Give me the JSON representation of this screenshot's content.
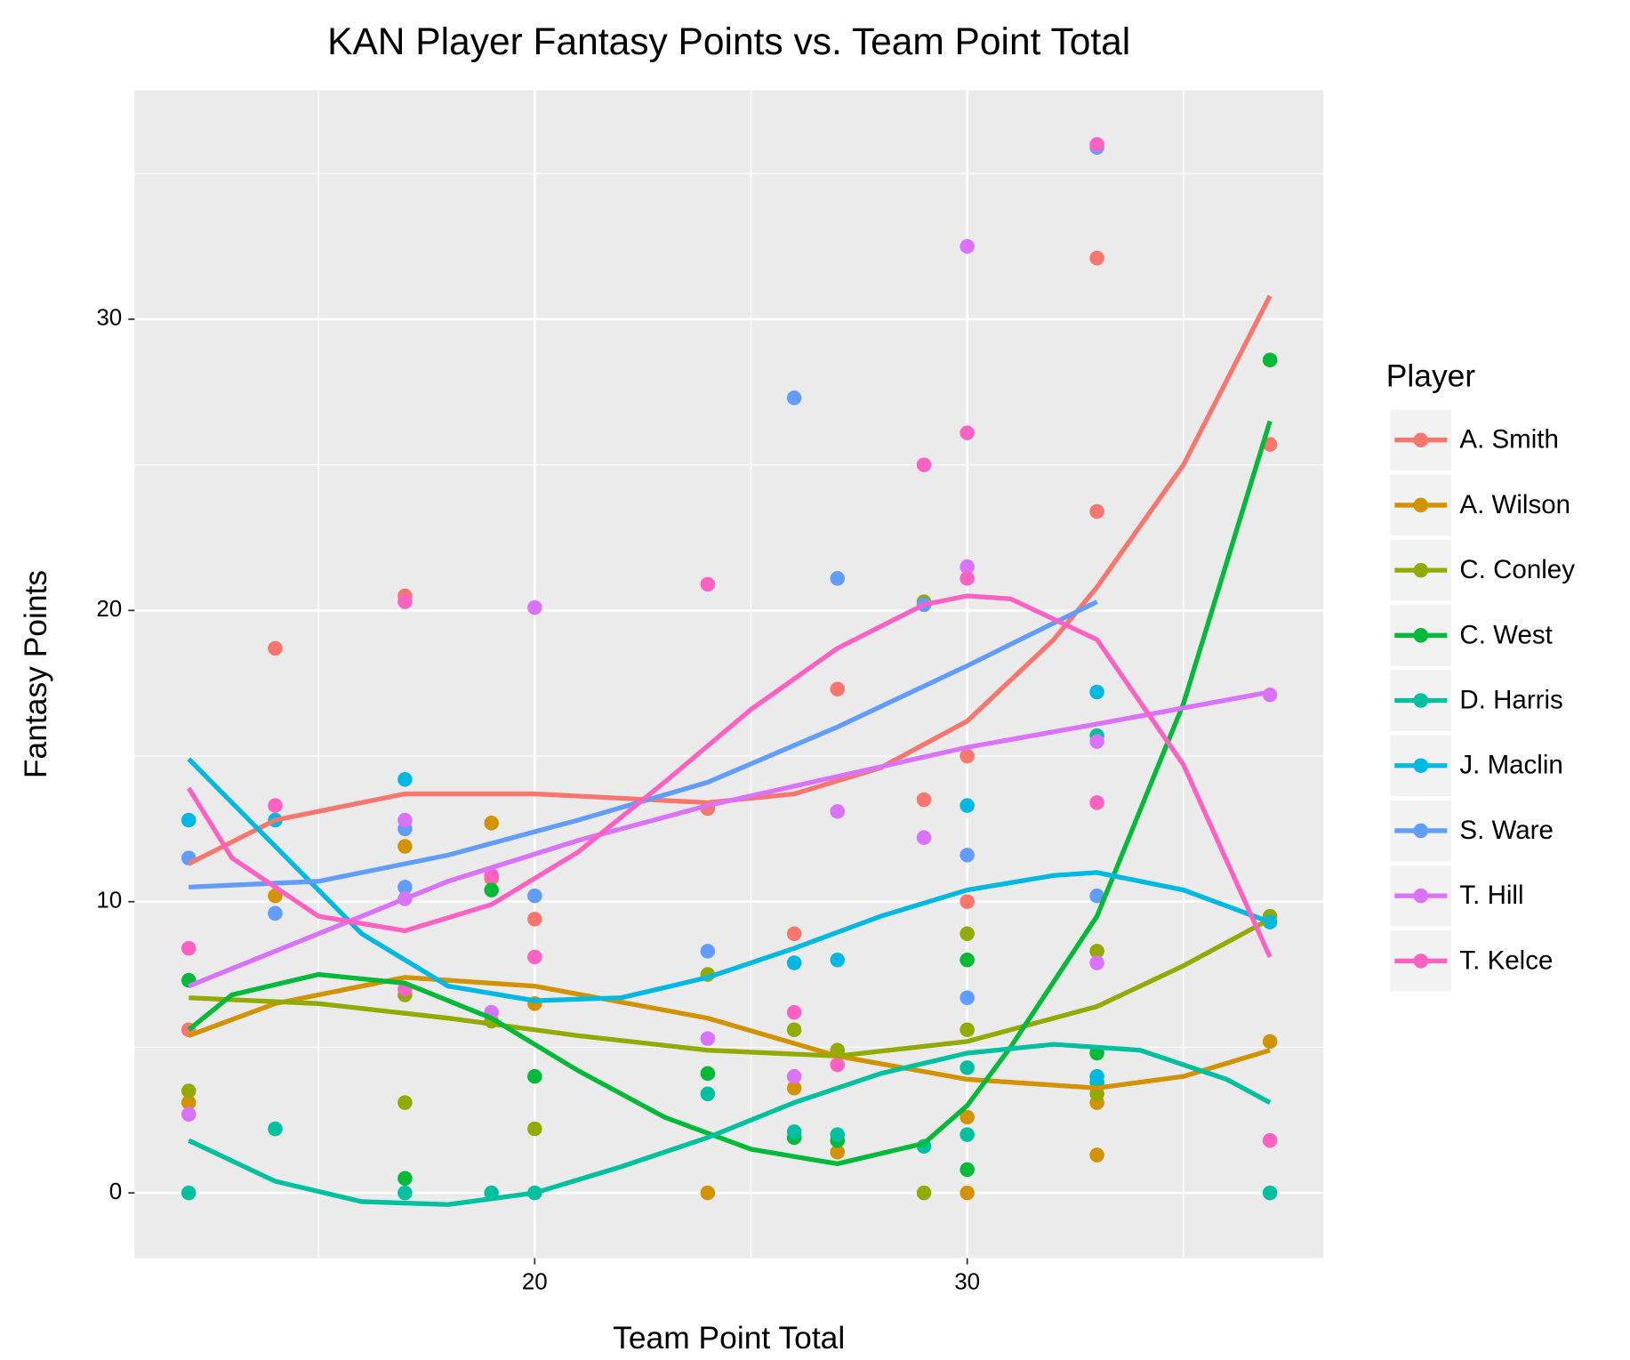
{
  "chart_data": {
    "type": "scatter",
    "title": "KAN Player Fantasy Points vs. Team Point Total",
    "x_label": "Team Point Total",
    "y_label": "Fantasy Points",
    "legend_title": "Player",
    "xlim": [
      10.75,
      38.23
    ],
    "ylim": [
      -2.24,
      37.86
    ],
    "xticks": [
      20,
      30
    ],
    "yticks": [
      0,
      10,
      20,
      30
    ],
    "grid": true,
    "legend_position": "right",
    "series": [
      {
        "name": "A. Smith",
        "color": "#F8766D",
        "x": [
          12,
          14,
          17,
          19,
          20,
          24,
          26,
          27,
          29,
          30,
          30,
          33,
          33,
          37
        ],
        "y": [
          5.6,
          18.7,
          20.5,
          10.8,
          9.4,
          13.2,
          8.9,
          17.3,
          13.5,
          15.0,
          10.0,
          32.1,
          23.4,
          25.7
        ],
        "smooth_x": [
          12,
          14,
          17,
          20,
          24,
          26,
          28,
          30,
          32,
          33,
          35,
          37
        ],
        "smooth_y": [
          11.3,
          12.8,
          13.7,
          13.7,
          13.4,
          13.7,
          14.6,
          16.2,
          19.0,
          20.8,
          25.0,
          30.8
        ]
      },
      {
        "name": "A. Wilson",
        "color": "#D39200",
        "x": [
          12,
          14,
          17,
          19,
          20,
          24,
          26,
          27,
          30,
          30,
          33,
          33,
          37
        ],
        "y": [
          3.1,
          10.2,
          11.9,
          12.7,
          6.5,
          0,
          3.6,
          1.4,
          2.6,
          0,
          3.1,
          1.3,
          5.2
        ],
        "smooth_x": [
          12,
          14,
          17,
          20,
          24,
          27,
          30,
          33,
          35,
          37
        ],
        "smooth_y": [
          5.4,
          6.5,
          7.4,
          7.1,
          6.0,
          4.7,
          3.9,
          3.6,
          4.0,
          4.9
        ]
      },
      {
        "name": "C. Conley",
        "color": "#93AA00",
        "x": [
          12,
          17,
          17,
          19,
          20,
          24,
          26,
          27,
          29,
          29,
          30,
          30,
          33,
          33,
          37
        ],
        "y": [
          3.5,
          3.1,
          6.8,
          5.9,
          2.2,
          7.5,
          5.6,
          4.9,
          0,
          20.3,
          8.9,
          5.6,
          8.3,
          3.4,
          9.5
        ],
        "smooth_x": [
          12,
          15,
          18,
          21,
          24,
          27,
          30,
          33,
          35,
          37
        ],
        "smooth_y": [
          6.7,
          6.5,
          6.0,
          5.4,
          4.9,
          4.7,
          5.2,
          6.4,
          7.8,
          9.4
        ]
      },
      {
        "name": "C. West",
        "color": "#00BA38",
        "x": [
          12,
          17,
          19,
          20,
          24,
          26,
          27,
          30,
          30,
          33,
          37
        ],
        "y": [
          7.3,
          0.5,
          10.4,
          4.0,
          4.1,
          1.9,
          1.8,
          8.0,
          0.8,
          4.8,
          28.6
        ],
        "smooth_x": [
          12,
          13,
          15,
          17,
          19,
          21,
          23,
          25,
          27,
          29,
          30,
          31,
          33,
          35,
          37
        ],
        "smooth_y": [
          5.6,
          6.8,
          7.5,
          7.2,
          6.0,
          4.2,
          2.6,
          1.5,
          1.0,
          1.7,
          3.0,
          5.0,
          9.5,
          16.8,
          26.5
        ]
      },
      {
        "name": "D. Harris",
        "color": "#00C19F",
        "x": [
          12,
          14,
          17,
          19,
          20,
          24,
          26,
          27,
          29,
          30,
          30,
          33,
          33,
          37
        ],
        "y": [
          0,
          2.2,
          0,
          0,
          0,
          3.4,
          2.1,
          2.0,
          1.6,
          2.0,
          4.3,
          15.7,
          3.8,
          0
        ],
        "smooth_x": [
          12,
          14,
          16,
          18,
          20,
          22,
          24,
          26,
          28,
          30,
          32,
          34,
          36,
          37
        ],
        "smooth_y": [
          1.8,
          0.4,
          -0.3,
          -0.4,
          0.0,
          0.9,
          1.9,
          3.1,
          4.1,
          4.8,
          5.1,
          4.9,
          3.9,
          3.1
        ]
      },
      {
        "name": "J. Maclin",
        "color": "#00B9E3",
        "x": [
          12,
          14,
          17,
          26,
          27,
          29,
          30,
          33,
          33,
          37
        ],
        "y": [
          12.8,
          12.8,
          14.2,
          7.9,
          8.0,
          20.2,
          13.3,
          17.2,
          4.0,
          9.3
        ],
        "smooth_x": [
          12,
          14,
          16,
          18,
          20,
          22,
          24,
          26,
          28,
          30,
          32,
          33,
          35,
          37
        ],
        "smooth_y": [
          14.9,
          11.9,
          8.9,
          7.1,
          6.6,
          6.7,
          7.4,
          8.4,
          9.5,
          10.4,
          10.9,
          11.0,
          10.4,
          9.3
        ]
      },
      {
        "name": "S. Ware",
        "color": "#619CFF",
        "x": [
          12,
          14,
          17,
          17,
          20,
          24,
          26,
          27,
          29,
          30,
          30,
          33,
          33
        ],
        "y": [
          11.5,
          9.6,
          10.5,
          12.5,
          10.2,
          8.3,
          27.3,
          21.1,
          20.2,
          11.6,
          6.7,
          35.9,
          10.2
        ],
        "smooth_x": [
          12,
          15,
          18,
          21,
          24,
          27,
          30,
          33
        ],
        "smooth_y": [
          10.5,
          10.7,
          11.6,
          12.8,
          14.1,
          16.0,
          18.1,
          20.3
        ]
      },
      {
        "name": "T. Hill",
        "color": "#DB72FB",
        "x": [
          12,
          17,
          17,
          19,
          20,
          24,
          26,
          27,
          29,
          30,
          30,
          33,
          33,
          37
        ],
        "y": [
          2.7,
          12.8,
          10.1,
          6.2,
          20.1,
          5.3,
          4.0,
          13.1,
          12.2,
          32.5,
          21.5,
          15.5,
          7.9,
          17.1
        ],
        "smooth_x": [
          12,
          15,
          18,
          21,
          24,
          27,
          30,
          33,
          37
        ],
        "smooth_y": [
          7.1,
          8.9,
          10.7,
          12.1,
          13.3,
          14.3,
          15.3,
          16.1,
          17.2
        ]
      },
      {
        "name": "T. Kelce",
        "color": "#FF61C3",
        "x": [
          12,
          14,
          17,
          17,
          19,
          20,
          24,
          26,
          27,
          29,
          30,
          30,
          33,
          33,
          37
        ],
        "y": [
          8.4,
          13.3,
          20.3,
          7.0,
          10.9,
          8.1,
          20.9,
          6.2,
          4.4,
          25.0,
          26.1,
          21.1,
          36.0,
          13.4,
          1.8
        ],
        "smooth_x": [
          12,
          13,
          15,
          17,
          19,
          21,
          23,
          25,
          27,
          29,
          30,
          31,
          33,
          35,
          37
        ],
        "smooth_y": [
          13.9,
          11.5,
          9.5,
          9.0,
          9.9,
          11.7,
          14.1,
          16.6,
          18.7,
          20.2,
          20.5,
          20.4,
          19.0,
          14.7,
          8.1
        ]
      }
    ]
  }
}
